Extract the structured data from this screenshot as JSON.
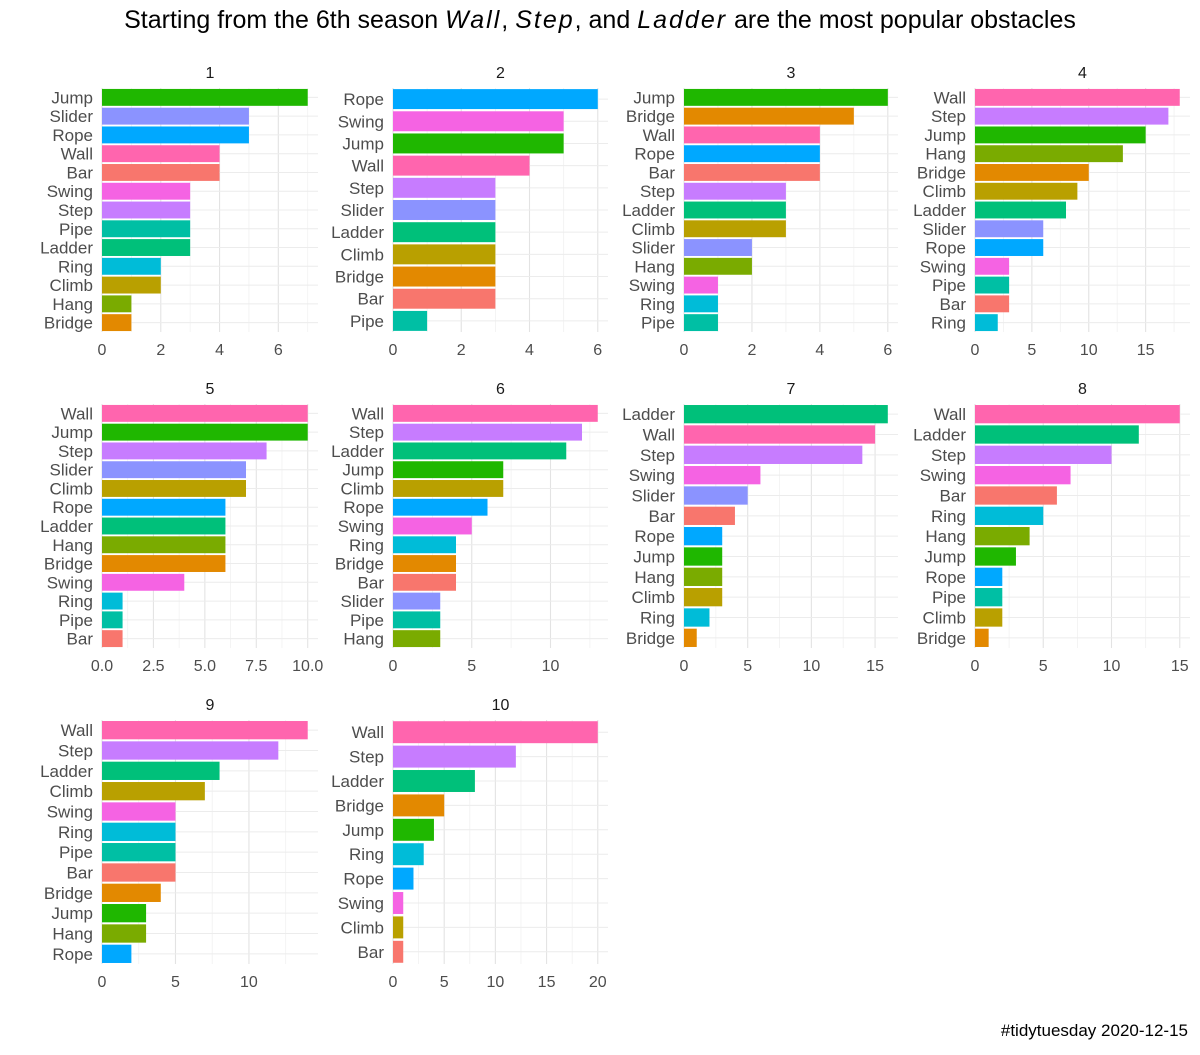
{
  "title": {
    "prefix": "Starting from the 6th season ",
    "w1": "Wall",
    "sep1": ", ",
    "w2": "Step",
    "sep2": ", and ",
    "w3": "Ladder",
    "suffix": " are the most popular obstacles"
  },
  "caption": "#tidytuesday 2020-12-15",
  "colors": {
    "Jump": "#1fb700",
    "Slider": "#8b93ff",
    "Rope": "#00a8ff",
    "Wall": "#ff65ae",
    "Bar": "#f8766d",
    "Swing": "#f563e3",
    "Step": "#c77cff",
    "Pipe": "#00bfa4",
    "Ladder": "#00c07a",
    "Ring": "#00bcd8",
    "Climb": "#b9a000",
    "Hang": "#7aab00",
    "Bridge": "#e38900"
  },
  "chart_data": [
    {
      "type": "bar",
      "title": "1",
      "categories": [
        "Jump",
        "Slider",
        "Rope",
        "Wall",
        "Bar",
        "Swing",
        "Step",
        "Pipe",
        "Ladder",
        "Ring",
        "Climb",
        "Hang",
        "Bridge"
      ],
      "values": [
        7,
        5,
        5,
        4,
        4,
        3,
        3,
        3,
        3,
        2,
        2,
        1,
        1
      ],
      "xlim": [
        0,
        7.35
      ],
      "ticks": [
        0,
        2,
        4,
        6
      ],
      "tick_labels": [
        "0",
        "2",
        "4",
        "6"
      ]
    },
    {
      "type": "bar",
      "title": "2",
      "categories": [
        "Rope",
        "Swing",
        "Jump",
        "Wall",
        "Step",
        "Slider",
        "Ladder",
        "Climb",
        "Bridge",
        "Bar",
        "Pipe"
      ],
      "values": [
        6,
        5,
        5,
        4,
        3,
        3,
        3,
        3,
        3,
        3,
        1
      ],
      "xlim": [
        0,
        6.3
      ],
      "ticks": [
        0,
        2,
        4,
        6
      ],
      "tick_labels": [
        "0",
        "2",
        "4",
        "6"
      ]
    },
    {
      "type": "bar",
      "title": "3",
      "categories": [
        "Jump",
        "Bridge",
        "Wall",
        "Rope",
        "Bar",
        "Step",
        "Ladder",
        "Climb",
        "Slider",
        "Hang",
        "Swing",
        "Ring",
        "Pipe"
      ],
      "values": [
        6,
        5,
        4,
        4,
        4,
        3,
        3,
        3,
        2,
        2,
        1,
        1,
        1
      ],
      "xlim": [
        0,
        6.3
      ],
      "ticks": [
        0,
        2,
        4,
        6
      ],
      "tick_labels": [
        "0",
        "2",
        "4",
        "6"
      ]
    },
    {
      "type": "bar",
      "title": "4",
      "categories": [
        "Wall",
        "Step",
        "Jump",
        "Hang",
        "Bridge",
        "Climb",
        "Ladder",
        "Slider",
        "Rope",
        "Swing",
        "Pipe",
        "Bar",
        "Ring"
      ],
      "values": [
        18,
        17,
        15,
        13,
        10,
        9,
        8,
        6,
        6,
        3,
        3,
        3,
        2
      ],
      "xlim": [
        0,
        18.9
      ],
      "ticks": [
        0,
        5,
        10,
        15
      ],
      "tick_labels": [
        "0",
        "5",
        "10",
        "15"
      ]
    },
    {
      "type": "bar",
      "title": "5",
      "categories": [
        "Wall",
        "Jump",
        "Step",
        "Slider",
        "Climb",
        "Rope",
        "Ladder",
        "Hang",
        "Bridge",
        "Swing",
        "Ring",
        "Pipe",
        "Bar"
      ],
      "values": [
        10,
        10,
        8,
        7,
        7,
        6,
        6,
        6,
        6,
        4,
        1,
        1,
        1
      ],
      "xlim": [
        0,
        10.5
      ],
      "ticks": [
        0,
        2.5,
        5,
        7.5,
        10
      ],
      "tick_labels": [
        "0.0",
        "2.5",
        "5.0",
        "7.5",
        "10.0"
      ]
    },
    {
      "type": "bar",
      "title": "6",
      "categories": [
        "Wall",
        "Step",
        "Ladder",
        "Jump",
        "Climb",
        "Rope",
        "Swing",
        "Ring",
        "Bridge",
        "Bar",
        "Slider",
        "Pipe",
        "Hang"
      ],
      "values": [
        13,
        12,
        11,
        7,
        7,
        6,
        5,
        4,
        4,
        4,
        3,
        3,
        3
      ],
      "xlim": [
        0,
        13.65
      ],
      "ticks": [
        0,
        5,
        10
      ],
      "tick_labels": [
        "0",
        "5",
        "10"
      ]
    },
    {
      "type": "bar",
      "title": "7",
      "categories": [
        "Ladder",
        "Wall",
        "Step",
        "Swing",
        "Slider",
        "Bar",
        "Rope",
        "Jump",
        "Hang",
        "Climb",
        "Ring",
        "Bridge"
      ],
      "values": [
        16,
        15,
        14,
        6,
        5,
        4,
        3,
        3,
        3,
        3,
        2,
        1
      ],
      "xlim": [
        0,
        16.8
      ],
      "ticks": [
        0,
        5,
        10,
        15
      ],
      "tick_labels": [
        "0",
        "5",
        "10",
        "15"
      ]
    },
    {
      "type": "bar",
      "title": "8",
      "categories": [
        "Wall",
        "Ladder",
        "Step",
        "Swing",
        "Bar",
        "Ring",
        "Hang",
        "Jump",
        "Rope",
        "Pipe",
        "Climb",
        "Bridge"
      ],
      "values": [
        15,
        12,
        10,
        7,
        6,
        5,
        4,
        3,
        2,
        2,
        2,
        1
      ],
      "xlim": [
        0,
        15.75
      ],
      "ticks": [
        0,
        5,
        10,
        15
      ],
      "tick_labels": [
        "0",
        "5",
        "10",
        "15"
      ]
    },
    {
      "type": "bar",
      "title": "9",
      "categories": [
        "Wall",
        "Step",
        "Ladder",
        "Climb",
        "Swing",
        "Ring",
        "Pipe",
        "Bar",
        "Bridge",
        "Jump",
        "Hang",
        "Rope"
      ],
      "values": [
        14,
        12,
        8,
        7,
        5,
        5,
        5,
        5,
        4,
        3,
        3,
        2
      ],
      "xlim": [
        0,
        14.7
      ],
      "ticks": [
        0,
        5,
        10
      ],
      "tick_labels": [
        "0",
        "5",
        "10"
      ]
    },
    {
      "type": "bar",
      "title": "10",
      "categories": [
        "Wall",
        "Step",
        "Ladder",
        "Bridge",
        "Jump",
        "Ring",
        "Rope",
        "Swing",
        "Climb",
        "Bar"
      ],
      "values": [
        20,
        12,
        8,
        5,
        4,
        3,
        2,
        1,
        1,
        1
      ],
      "xlim": [
        0,
        21
      ],
      "ticks": [
        0,
        5,
        10,
        15,
        20
      ],
      "tick_labels": [
        "0",
        "5",
        "10",
        "15",
        "20"
      ]
    }
  ]
}
